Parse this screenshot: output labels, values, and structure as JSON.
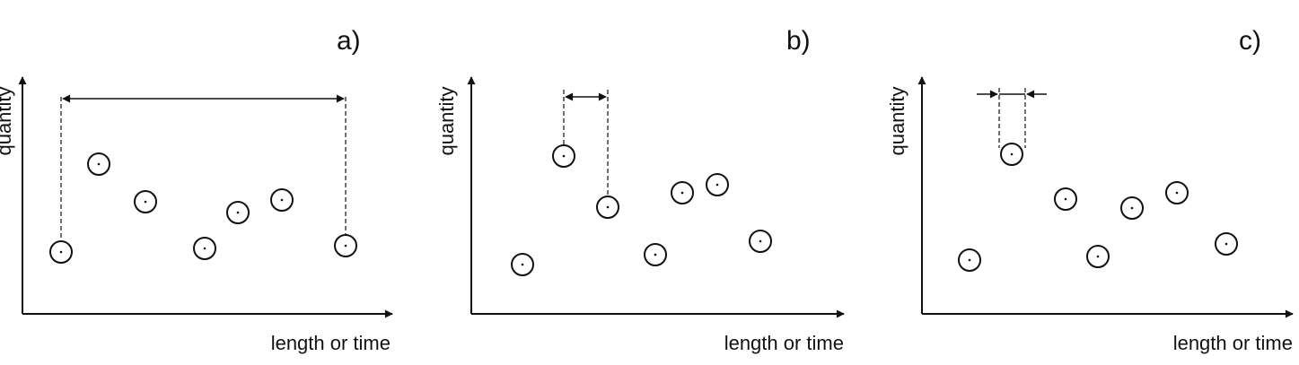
{
  "panels": [
    {
      "label": "a)",
      "y_axis_label": "quantity",
      "x_axis_label": "length or time"
    },
    {
      "label": "b)",
      "y_axis_label": "quantity",
      "x_axis_label": "length or time"
    },
    {
      "label": "c)",
      "y_axis_label": "quantity",
      "x_axis_label": "length or time"
    }
  ]
}
